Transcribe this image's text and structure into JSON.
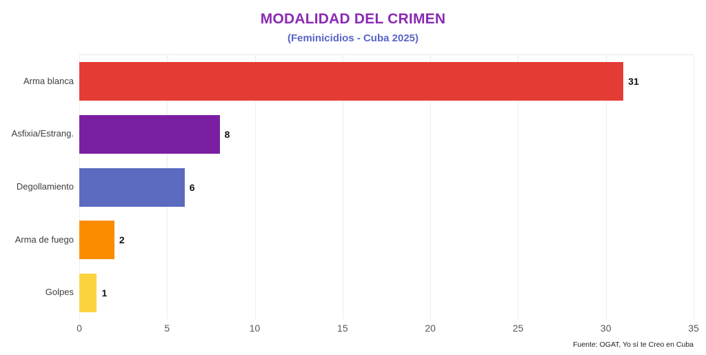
{
  "header": {
    "title": "MODALIDAD DEL CRIMEN",
    "subtitle": "(Feminicidios - Cuba 2025)",
    "title_color": "#8A2BB4",
    "subtitle_color": "#5864C8"
  },
  "chart_data": {
    "type": "bar",
    "orientation": "horizontal",
    "title": "MODALIDAD DEL CRIMEN",
    "subtitle": "(Feminicidios - Cuba 2025)",
    "categories": [
      "Arma blanca",
      "Asfixia/Estrang.",
      "Degollamiento",
      "Arma de fuego",
      "Golpes"
    ],
    "values": [
      31,
      8,
      6,
      2,
      1
    ],
    "bar_colors": [
      "#E43C35",
      "#7B1FA2",
      "#5C6BC0",
      "#FB8C00",
      "#FCD440"
    ],
    "value_label_color": "#111111",
    "xlabel": "",
    "ylabel": "",
    "xlim": [
      0,
      35
    ],
    "x_ticks": [
      0,
      5,
      10,
      15,
      20,
      25,
      30,
      35
    ],
    "grid": "vertical",
    "legend": "none",
    "value_labels": true
  },
  "footer": {
    "source": "Fuente: OGAT, Yo sí te Creo en Cuba"
  }
}
